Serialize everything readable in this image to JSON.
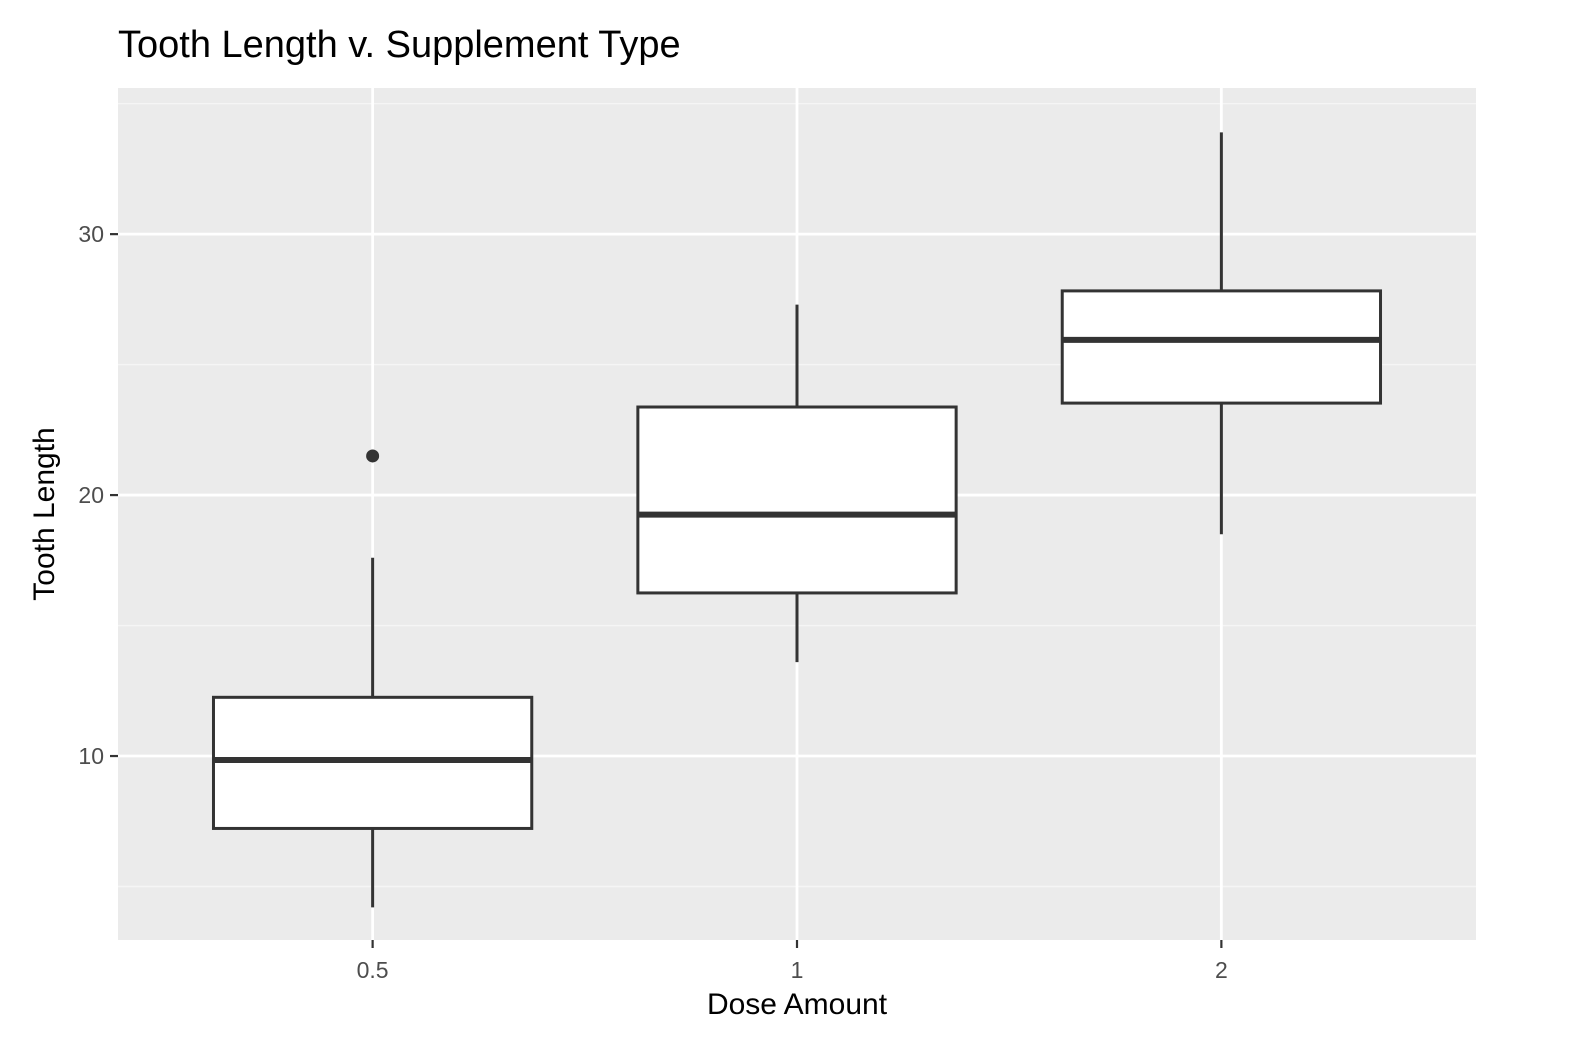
{
  "chart_data": {
    "type": "boxplot",
    "title": "Tooth Length v. Supplement Type",
    "xlabel": "Dose Amount",
    "ylabel": "Tooth Length",
    "categories": [
      "0.5",
      "1",
      "2"
    ],
    "y_ticks": [
      10,
      20,
      30
    ],
    "ylim": [
      2.95,
      35.6
    ],
    "grid": true,
    "boxes": [
      {
        "category": "0.5",
        "whisker_low": 4.2,
        "q1": 7.225,
        "median": 9.85,
        "q3": 12.25,
        "whisker_high": 17.6,
        "outliers": [
          21.5
        ]
      },
      {
        "category": "1",
        "whisker_low": 13.6,
        "q1": 16.25,
        "median": 19.25,
        "q3": 23.375,
        "whisker_high": 27.3,
        "outliers": []
      },
      {
        "category": "2",
        "whisker_low": 18.5,
        "q1": 23.525,
        "median": 25.95,
        "q3": 27.825,
        "whisker_high": 33.9,
        "outliers": []
      }
    ]
  },
  "colors": {
    "panel_background": "#ebebeb",
    "grid_major": "#ffffff",
    "grid_minor": "#f5f5f5",
    "box_fill": "#ffffff",
    "box_stroke": "#333333",
    "tick_text": "#4d4d4d"
  }
}
